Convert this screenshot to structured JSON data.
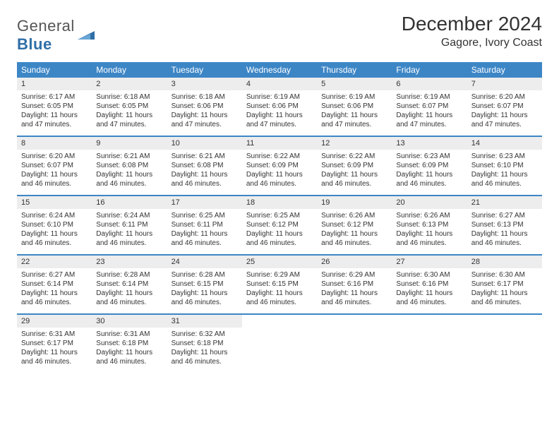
{
  "brand": {
    "name_a": "General",
    "name_b": "Blue"
  },
  "title": "December 2024",
  "location": "Gagore, Ivory Coast",
  "colors": {
    "header_bg": "#3d86c6",
    "header_text": "#ffffff",
    "daynum_bg": "#ededed",
    "rule": "#3d86c6",
    "text": "#333333",
    "logo_blue": "#2f6fa7"
  },
  "weekdays": [
    "Sunday",
    "Monday",
    "Tuesday",
    "Wednesday",
    "Thursday",
    "Friday",
    "Saturday"
  ],
  "weeks": [
    [
      {
        "n": "1",
        "sr": "Sunrise: 6:17 AM",
        "ss": "Sunset: 6:05 PM",
        "dl": "Daylight: 11 hours and 47 minutes."
      },
      {
        "n": "2",
        "sr": "Sunrise: 6:18 AM",
        "ss": "Sunset: 6:05 PM",
        "dl": "Daylight: 11 hours and 47 minutes."
      },
      {
        "n": "3",
        "sr": "Sunrise: 6:18 AM",
        "ss": "Sunset: 6:06 PM",
        "dl": "Daylight: 11 hours and 47 minutes."
      },
      {
        "n": "4",
        "sr": "Sunrise: 6:19 AM",
        "ss": "Sunset: 6:06 PM",
        "dl": "Daylight: 11 hours and 47 minutes."
      },
      {
        "n": "5",
        "sr": "Sunrise: 6:19 AM",
        "ss": "Sunset: 6:06 PM",
        "dl": "Daylight: 11 hours and 47 minutes."
      },
      {
        "n": "6",
        "sr": "Sunrise: 6:19 AM",
        "ss": "Sunset: 6:07 PM",
        "dl": "Daylight: 11 hours and 47 minutes."
      },
      {
        "n": "7",
        "sr": "Sunrise: 6:20 AM",
        "ss": "Sunset: 6:07 PM",
        "dl": "Daylight: 11 hours and 47 minutes."
      }
    ],
    [
      {
        "n": "8",
        "sr": "Sunrise: 6:20 AM",
        "ss": "Sunset: 6:07 PM",
        "dl": "Daylight: 11 hours and 46 minutes."
      },
      {
        "n": "9",
        "sr": "Sunrise: 6:21 AM",
        "ss": "Sunset: 6:08 PM",
        "dl": "Daylight: 11 hours and 46 minutes."
      },
      {
        "n": "10",
        "sr": "Sunrise: 6:21 AM",
        "ss": "Sunset: 6:08 PM",
        "dl": "Daylight: 11 hours and 46 minutes."
      },
      {
        "n": "11",
        "sr": "Sunrise: 6:22 AM",
        "ss": "Sunset: 6:09 PM",
        "dl": "Daylight: 11 hours and 46 minutes."
      },
      {
        "n": "12",
        "sr": "Sunrise: 6:22 AM",
        "ss": "Sunset: 6:09 PM",
        "dl": "Daylight: 11 hours and 46 minutes."
      },
      {
        "n": "13",
        "sr": "Sunrise: 6:23 AM",
        "ss": "Sunset: 6:09 PM",
        "dl": "Daylight: 11 hours and 46 minutes."
      },
      {
        "n": "14",
        "sr": "Sunrise: 6:23 AM",
        "ss": "Sunset: 6:10 PM",
        "dl": "Daylight: 11 hours and 46 minutes."
      }
    ],
    [
      {
        "n": "15",
        "sr": "Sunrise: 6:24 AM",
        "ss": "Sunset: 6:10 PM",
        "dl": "Daylight: 11 hours and 46 minutes."
      },
      {
        "n": "16",
        "sr": "Sunrise: 6:24 AM",
        "ss": "Sunset: 6:11 PM",
        "dl": "Daylight: 11 hours and 46 minutes."
      },
      {
        "n": "17",
        "sr": "Sunrise: 6:25 AM",
        "ss": "Sunset: 6:11 PM",
        "dl": "Daylight: 11 hours and 46 minutes."
      },
      {
        "n": "18",
        "sr": "Sunrise: 6:25 AM",
        "ss": "Sunset: 6:12 PM",
        "dl": "Daylight: 11 hours and 46 minutes."
      },
      {
        "n": "19",
        "sr": "Sunrise: 6:26 AM",
        "ss": "Sunset: 6:12 PM",
        "dl": "Daylight: 11 hours and 46 minutes."
      },
      {
        "n": "20",
        "sr": "Sunrise: 6:26 AM",
        "ss": "Sunset: 6:13 PM",
        "dl": "Daylight: 11 hours and 46 minutes."
      },
      {
        "n": "21",
        "sr": "Sunrise: 6:27 AM",
        "ss": "Sunset: 6:13 PM",
        "dl": "Daylight: 11 hours and 46 minutes."
      }
    ],
    [
      {
        "n": "22",
        "sr": "Sunrise: 6:27 AM",
        "ss": "Sunset: 6:14 PM",
        "dl": "Daylight: 11 hours and 46 minutes."
      },
      {
        "n": "23",
        "sr": "Sunrise: 6:28 AM",
        "ss": "Sunset: 6:14 PM",
        "dl": "Daylight: 11 hours and 46 minutes."
      },
      {
        "n": "24",
        "sr": "Sunrise: 6:28 AM",
        "ss": "Sunset: 6:15 PM",
        "dl": "Daylight: 11 hours and 46 minutes."
      },
      {
        "n": "25",
        "sr": "Sunrise: 6:29 AM",
        "ss": "Sunset: 6:15 PM",
        "dl": "Daylight: 11 hours and 46 minutes."
      },
      {
        "n": "26",
        "sr": "Sunrise: 6:29 AM",
        "ss": "Sunset: 6:16 PM",
        "dl": "Daylight: 11 hours and 46 minutes."
      },
      {
        "n": "27",
        "sr": "Sunrise: 6:30 AM",
        "ss": "Sunset: 6:16 PM",
        "dl": "Daylight: 11 hours and 46 minutes."
      },
      {
        "n": "28",
        "sr": "Sunrise: 6:30 AM",
        "ss": "Sunset: 6:17 PM",
        "dl": "Daylight: 11 hours and 46 minutes."
      }
    ],
    [
      {
        "n": "29",
        "sr": "Sunrise: 6:31 AM",
        "ss": "Sunset: 6:17 PM",
        "dl": "Daylight: 11 hours and 46 minutes."
      },
      {
        "n": "30",
        "sr": "Sunrise: 6:31 AM",
        "ss": "Sunset: 6:18 PM",
        "dl": "Daylight: 11 hours and 46 minutes."
      },
      {
        "n": "31",
        "sr": "Sunrise: 6:32 AM",
        "ss": "Sunset: 6:18 PM",
        "dl": "Daylight: 11 hours and 46 minutes."
      },
      null,
      null,
      null,
      null
    ]
  ]
}
